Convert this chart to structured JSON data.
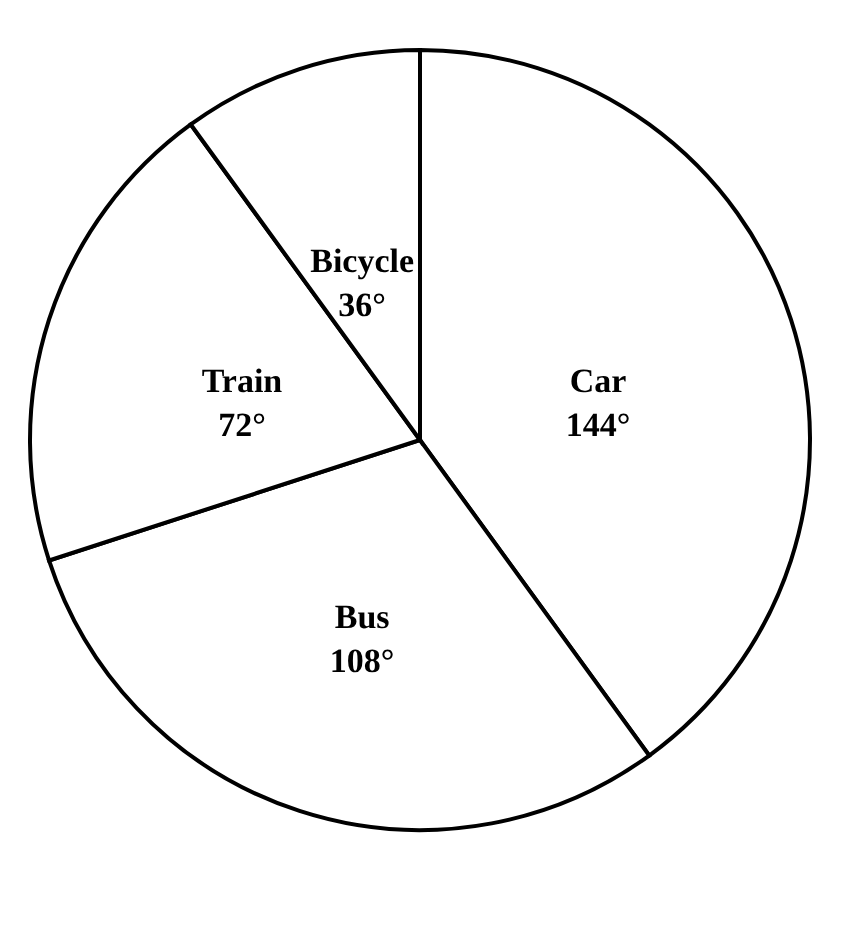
{
  "chart_data": {
    "type": "pie",
    "categories": [
      "Car",
      "Bus",
      "Train",
      "Bicycle"
    ],
    "values": [
      144,
      108,
      72,
      36
    ],
    "colors": [
      "#ffffff",
      "#ffffff",
      "#ffffff",
      "#ffffff"
    ],
    "value_labels": [
      "144°",
      "108°",
      "72°",
      "36°"
    ],
    "legend": false
  }
}
